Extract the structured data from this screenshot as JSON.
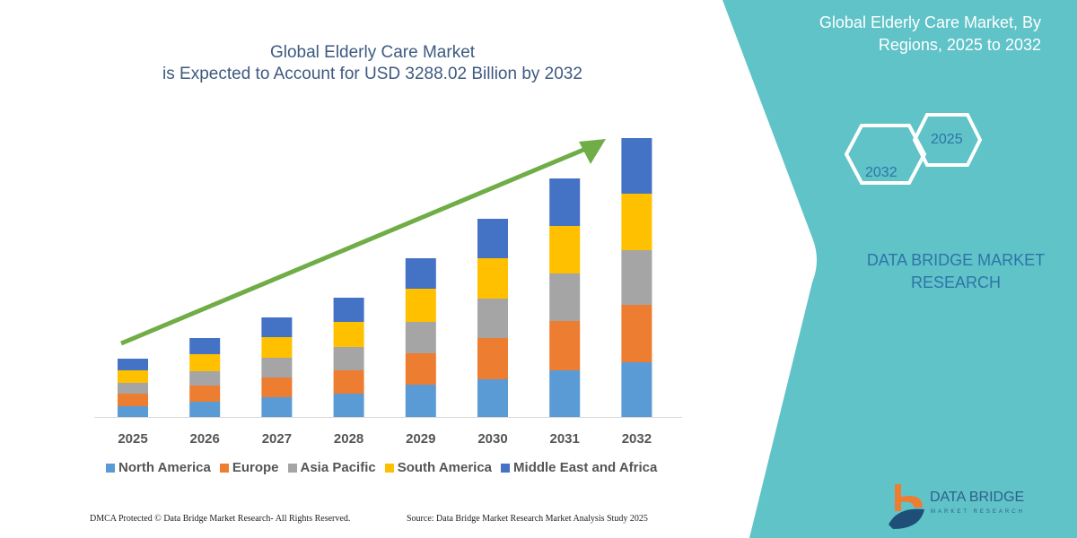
{
  "header": {
    "title_line1": "Global Elderly Care Market",
    "title_line2": "is Expected to Account for USD 3288.02 Billion by 2032"
  },
  "side_panel": {
    "title_line1": "Global Elderly Care Market, By",
    "title_line2": "Regions, 2025 to 2032",
    "hex_start": "2025",
    "hex_end": "2032",
    "brand_line1": "DATA BRIDGE MARKET",
    "brand_line2": "RESEARCH",
    "logo_name": "DATA BRIDGE",
    "logo_sub": "MARKET RESEARCH",
    "panel_color": "#5fc3c8"
  },
  "footer": {
    "copyright": "DMCA Protected © Data Bridge Market Research-  All Rights Reserved.",
    "source": "Source: Data Bridge Market Research  Market Analysis Study 2025"
  },
  "chart_data": {
    "type": "bar",
    "stacked": true,
    "title": "Global Elderly Care Market is Expected to Account for USD 3288.02 Billion by 2032",
    "categories": [
      "2025",
      "2026",
      "2027",
      "2028",
      "2029",
      "2030",
      "2031",
      "2032"
    ],
    "series": [
      {
        "name": "North America",
        "color": "#5b9bd5",
        "values": [
          12,
          17,
          22,
          26,
          36,
          42,
          52,
          61
        ]
      },
      {
        "name": "Europe",
        "color": "#ed7d31",
        "values": [
          14,
          18,
          22,
          26,
          35,
          46,
          55,
          64
        ]
      },
      {
        "name": "Asia Pacific",
        "color": "#a5a5a5",
        "values": [
          12,
          16,
          22,
          26,
          35,
          44,
          53,
          61
        ]
      },
      {
        "name": "South America",
        "color": "#ffc000",
        "values": [
          14,
          19,
          23,
          28,
          37,
          45,
          53,
          63
        ]
      },
      {
        "name": "Middle East and Africa",
        "color": "#4472c4",
        "values": [
          13,
          18,
          22,
          27,
          34,
          44,
          53,
          62
        ]
      }
    ],
    "value_note": "relative values; no y-axis printed",
    "grid": false,
    "legend_position": "bottom",
    "trend_arrow_color": "#70ad47"
  }
}
